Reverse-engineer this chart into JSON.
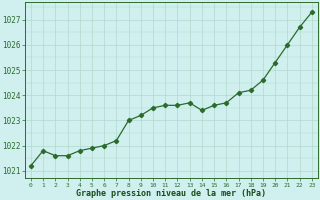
{
  "x": [
    0,
    1,
    2,
    3,
    4,
    5,
    6,
    7,
    8,
    9,
    10,
    11,
    12,
    13,
    14,
    15,
    16,
    17,
    18,
    19,
    20,
    21,
    22,
    23
  ],
  "y": [
    1021.2,
    1021.8,
    1021.6,
    1021.6,
    1021.8,
    1021.9,
    1022.0,
    1022.2,
    1023.0,
    1023.2,
    1023.5,
    1023.6,
    1023.6,
    1023.7,
    1023.4,
    1023.6,
    1023.7,
    1024.1,
    1024.2,
    1024.6,
    1025.3,
    1026.0,
    1026.7,
    1027.3
  ],
  "line_color": "#2d6a2d",
  "marker": "D",
  "marker_size": 2.2,
  "bg_color": "#cff0ee",
  "grid_color": "#b0d8cc",
  "ylabel_ticks": [
    1021,
    1022,
    1023,
    1024,
    1025,
    1026,
    1027
  ],
  "xlabel": "Graphe pression niveau de la mer (hPa)",
  "xlabel_color": "#1a4d1a",
  "ylim": [
    1020.7,
    1027.7
  ],
  "xlim": [
    -0.5,
    23.5
  ],
  "tick_label_color": "#2d6a2d",
  "font_family": "monospace"
}
